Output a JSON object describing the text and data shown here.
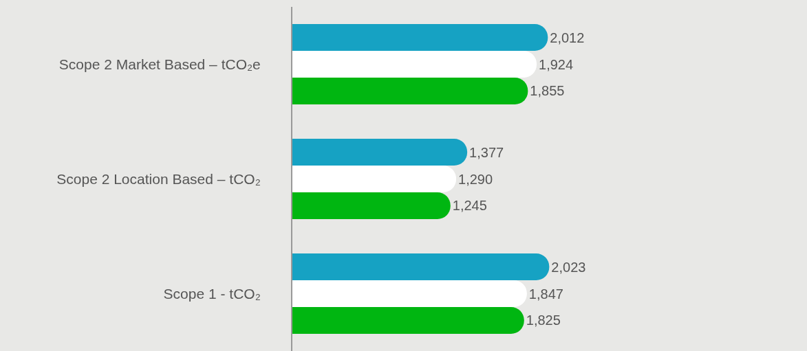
{
  "chart_data": {
    "type": "bar",
    "orientation": "horizontal",
    "categories": [
      "Scope 2 Market Based – tCO₂e",
      "Scope 2 Location Based – tCO₂",
      "Scope 1 - tCO₂"
    ],
    "series": [
      {
        "color": "#16a2c3",
        "values": [
          2012,
          1377,
          2023
        ],
        "value_labels": [
          "2,012",
          "1,377",
          "2,023"
        ]
      },
      {
        "color": "#ffffff",
        "values": [
          1924,
          1290,
          1847
        ],
        "value_labels": [
          "1,924",
          "1,290",
          "1,847"
        ]
      },
      {
        "color": "#00b611",
        "values": [
          1855,
          1245,
          1825
        ],
        "value_labels": [
          "1,855",
          "1,245",
          "1,825"
        ]
      }
    ]
  }
}
